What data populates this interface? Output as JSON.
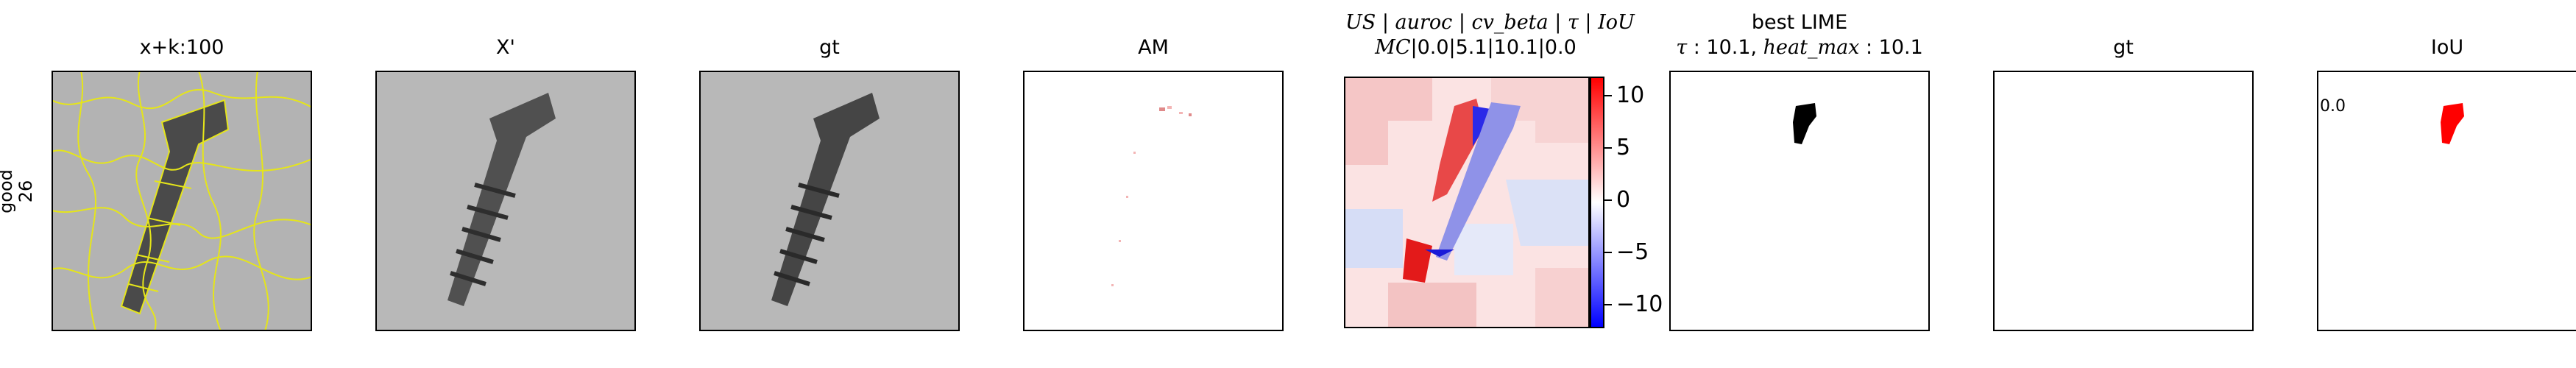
{
  "row_label": {
    "line1": "good",
    "line2": "26"
  },
  "panels": [
    {
      "title": "x+k:100"
    },
    {
      "title": "X'"
    },
    {
      "title": "gt"
    },
    {
      "title": "AM"
    },
    {
      "title_line1": "US | auroc | cv_beta | τ | IoU",
      "title_line2": "MC|0.0|5.1|10.1|0.0"
    },
    {
      "title_line1": "best LIME",
      "title_line2": "τ : 10.1, heat_max : 10.1"
    },
    {
      "title": "gt"
    },
    {
      "title": "IoU",
      "annotation": "0.0"
    }
  ],
  "colorbar": {
    "ticks": [
      "10",
      "5",
      "0",
      "−5",
      "−10"
    ],
    "colors": {
      "max": "#ff0000",
      "mid": "#ffffff",
      "min": "#0000ff"
    }
  }
}
